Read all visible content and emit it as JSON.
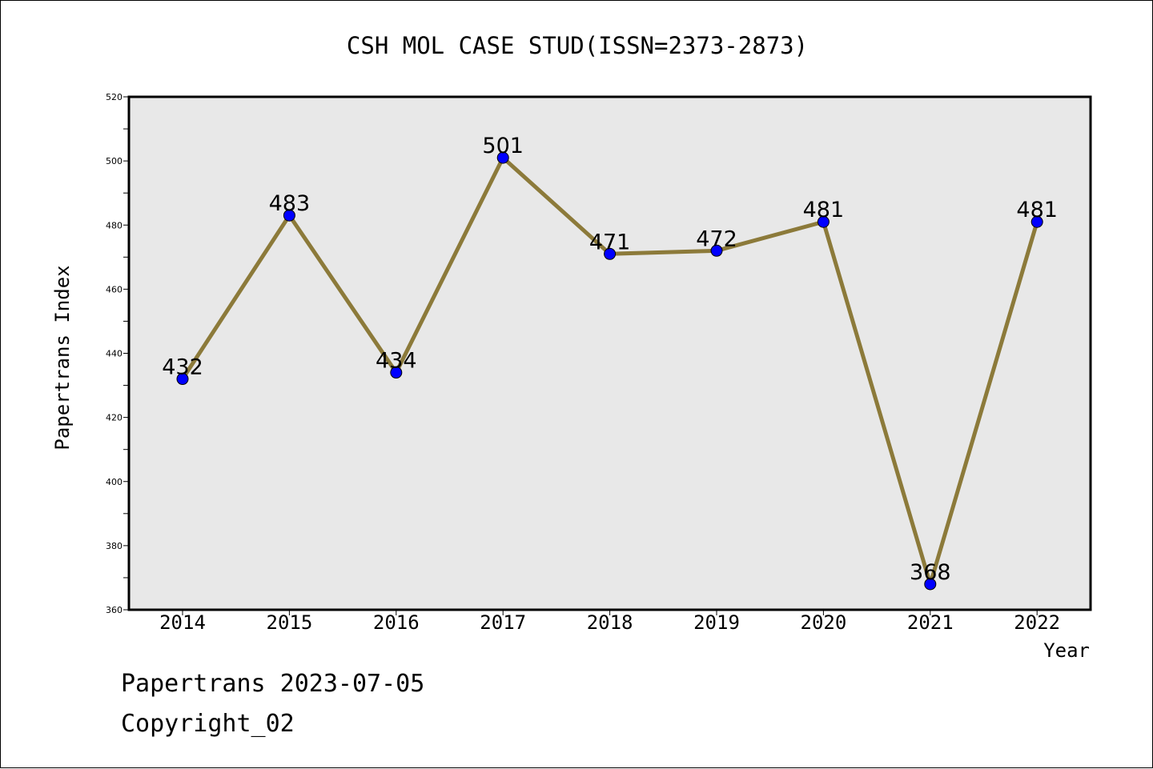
{
  "chart_data": {
    "type": "line",
    "title": "CSH MOL CASE STUD(ISSN=2373-2873)",
    "xlabel": "Year",
    "ylabel": "Papertrans Index",
    "categories": [
      "2014",
      "2015",
      "2016",
      "2017",
      "2018",
      "2019",
      "2020",
      "2021",
      "2022"
    ],
    "values": [
      432,
      483,
      434,
      501,
      471,
      472,
      481,
      368,
      481
    ],
    "data_labels": [
      "432",
      "483",
      "434",
      "501",
      "471",
      "472",
      "481",
      "368",
      "481"
    ],
    "ylim": [
      360,
      520
    ],
    "yticks": [
      "360",
      "380",
      "400",
      "420",
      "440",
      "460",
      "480",
      "500",
      "520"
    ],
    "grid": false,
    "colors": {
      "line": "#8c7a3a",
      "marker": "#0000ff",
      "plot_bg": "#e8e8e8"
    }
  },
  "footer": {
    "line1": "Papertrans 2023-07-05",
    "line2": "Copyright_02"
  }
}
